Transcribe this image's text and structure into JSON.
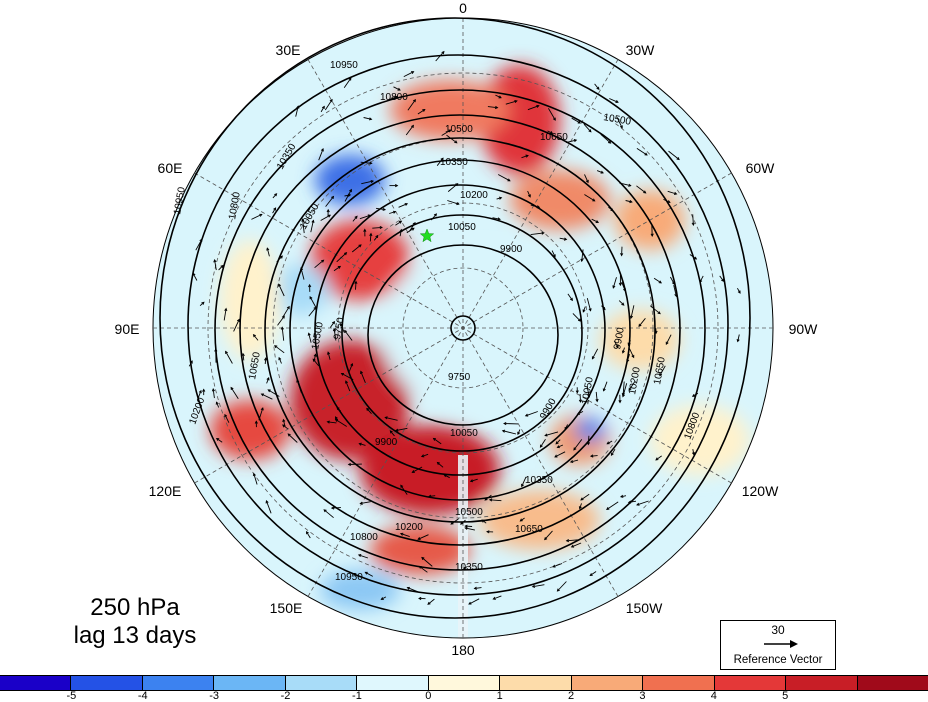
{
  "map": {
    "longitude_labels": [
      {
        "text": "0"
      },
      {
        "text": "30W"
      },
      {
        "text": "60W"
      },
      {
        "text": "90W"
      },
      {
        "text": "120W"
      },
      {
        "text": "150W"
      },
      {
        "text": "180"
      },
      {
        "text": "150E"
      },
      {
        "text": "120E"
      },
      {
        "text": "90E"
      },
      {
        "text": "60E"
      },
      {
        "text": "30E"
      }
    ],
    "contour_labels": [
      "10950",
      "10800",
      "10650",
      "10500",
      "10350",
      "10200",
      "10050",
      "9900",
      "9750",
      "9750",
      "10950",
      "10800",
      "10650",
      "10500",
      "10350",
      "10200",
      "10050",
      "9900",
      "10950",
      "10800",
      "10650",
      "10500",
      "10350",
      "10200",
      "10050",
      "9900",
      "10800",
      "10650",
      "10500",
      "10350",
      "10200",
      "10050",
      "9900"
    ],
    "marker": {
      "color": "#22dd22",
      "symbol": "star"
    }
  },
  "caption": {
    "line1": "250 hPa",
    "line2": "lag 13 days"
  },
  "reference_vector": {
    "value": "30",
    "label": "Reference Vector"
  },
  "colorbar": {
    "colors": [
      "#1a00c8",
      "#2452e6",
      "#3c82f0",
      "#6bb6f5",
      "#a8dcf8",
      "#dff7fd",
      "#fff8dc",
      "#fddcaa",
      "#f8aa78",
      "#f07050",
      "#e43838",
      "#c81e26",
      "#a00a1a"
    ],
    "ticks": [
      "-5",
      "-4",
      "-3",
      "-2",
      "-1",
      "0",
      "1",
      "2",
      "3",
      "4",
      "5"
    ]
  }
}
